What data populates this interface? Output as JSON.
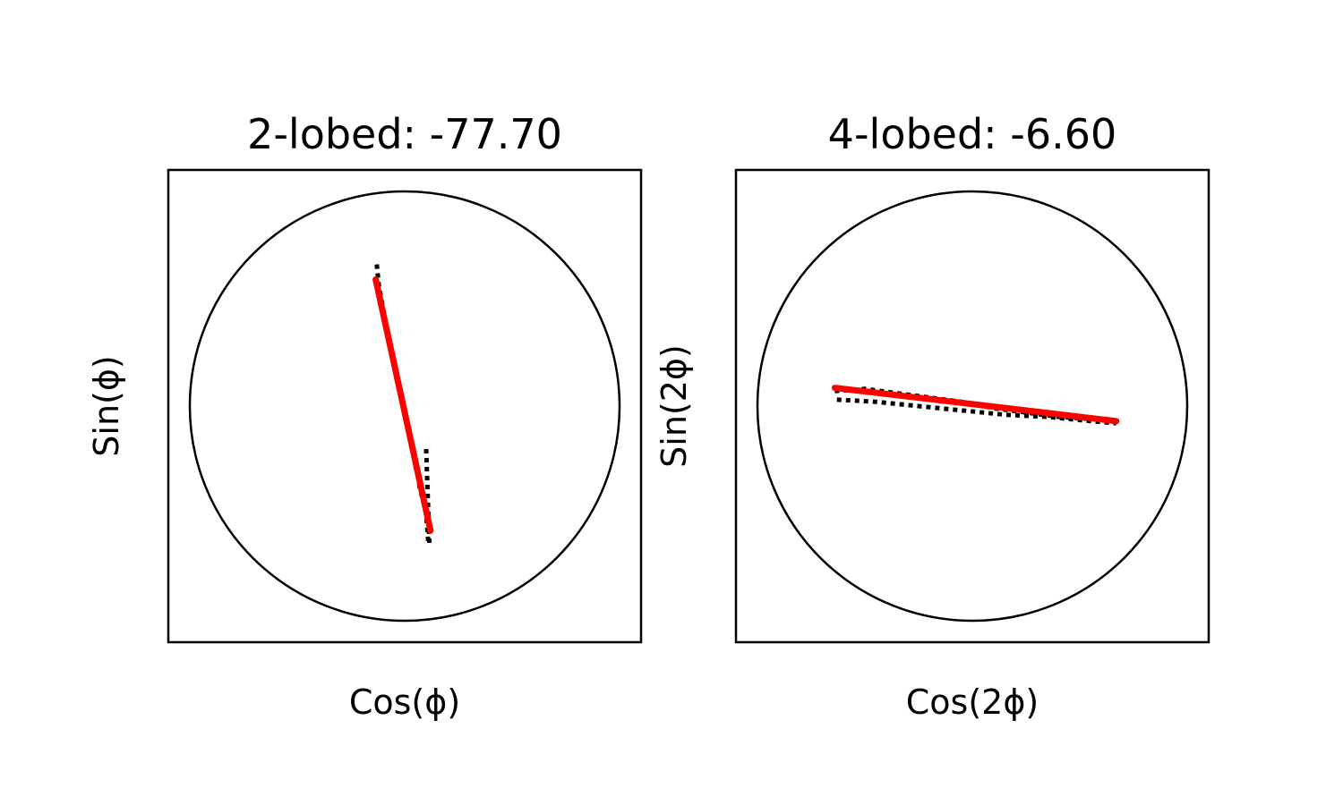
{
  "chart_data": [
    {
      "type": "line",
      "title": "2-lobed: -77.70",
      "xlabel": "Cos(ϕ)",
      "ylabel": "Sin(ϕ)",
      "xlim": [
        -1.1,
        1.1
      ],
      "ylim": [
        -1.1,
        1.1
      ],
      "grid": false,
      "ticks": "none",
      "unit_circle": {
        "radius": 1.0,
        "color": "#000000"
      },
      "series": [
        {
          "style": "dotted",
          "color": "#000000",
          "points": [
            [
              -0.13,
              0.66
            ],
            [
              -0.12,
              0.56
            ],
            [
              -0.1,
              0.45
            ],
            [
              -0.08,
              0.35
            ],
            [
              -0.05,
              0.2
            ],
            [
              -0.02,
              0.05
            ],
            [
              0.01,
              -0.08
            ],
            [
              0.05,
              -0.25
            ],
            [
              0.07,
              -0.38
            ],
            [
              0.1,
              -0.5
            ],
            [
              0.11,
              -0.64
            ]
          ]
        },
        {
          "style": "dotted",
          "color": "#000000",
          "points": [
            [
              0.1,
              -0.2
            ],
            [
              0.105,
              -0.35
            ],
            [
              0.11,
              -0.5
            ],
            [
              0.115,
              -0.64
            ]
          ]
        },
        {
          "style": "solid",
          "color": "#ff0000",
          "points": [
            [
              -0.135,
              0.59
            ],
            [
              0.12,
              -0.58
            ]
          ]
        }
      ]
    },
    {
      "type": "line",
      "title": "4-lobed: -6.60",
      "xlabel": "Cos(2ϕ)",
      "ylabel": "Sin(2ϕ)",
      "xlim": [
        -1.1,
        1.1
      ],
      "ylim": [
        -1.1,
        1.1
      ],
      "grid": false,
      "ticks": "none",
      "unit_circle": {
        "radius": 1.0,
        "color": "#000000"
      },
      "series": [
        {
          "style": "dotted",
          "color": "#000000",
          "points": [
            [
              -0.64,
              0.07
            ],
            [
              -0.5,
              0.08
            ],
            [
              -0.35,
              0.06
            ],
            [
              -0.2,
              0.04
            ],
            [
              -0.05,
              0.02
            ],
            [
              0.1,
              -0.01
            ],
            [
              0.25,
              -0.03
            ],
            [
              0.4,
              -0.05
            ],
            [
              0.55,
              -0.06
            ],
            [
              0.65,
              -0.07
            ]
          ]
        },
        {
          "style": "dotted",
          "color": "#000000",
          "points": [
            [
              -0.63,
              0.03
            ],
            [
              -0.45,
              0.02
            ],
            [
              -0.25,
              0.0
            ],
            [
              -0.05,
              -0.02
            ],
            [
              0.15,
              -0.04
            ],
            [
              0.35,
              -0.05
            ],
            [
              0.55,
              -0.07
            ],
            [
              0.67,
              -0.08
            ]
          ]
        },
        {
          "style": "solid",
          "color": "#ff0000",
          "points": [
            [
              -0.64,
              0.085
            ],
            [
              0.67,
              -0.07
            ]
          ]
        }
      ]
    }
  ]
}
